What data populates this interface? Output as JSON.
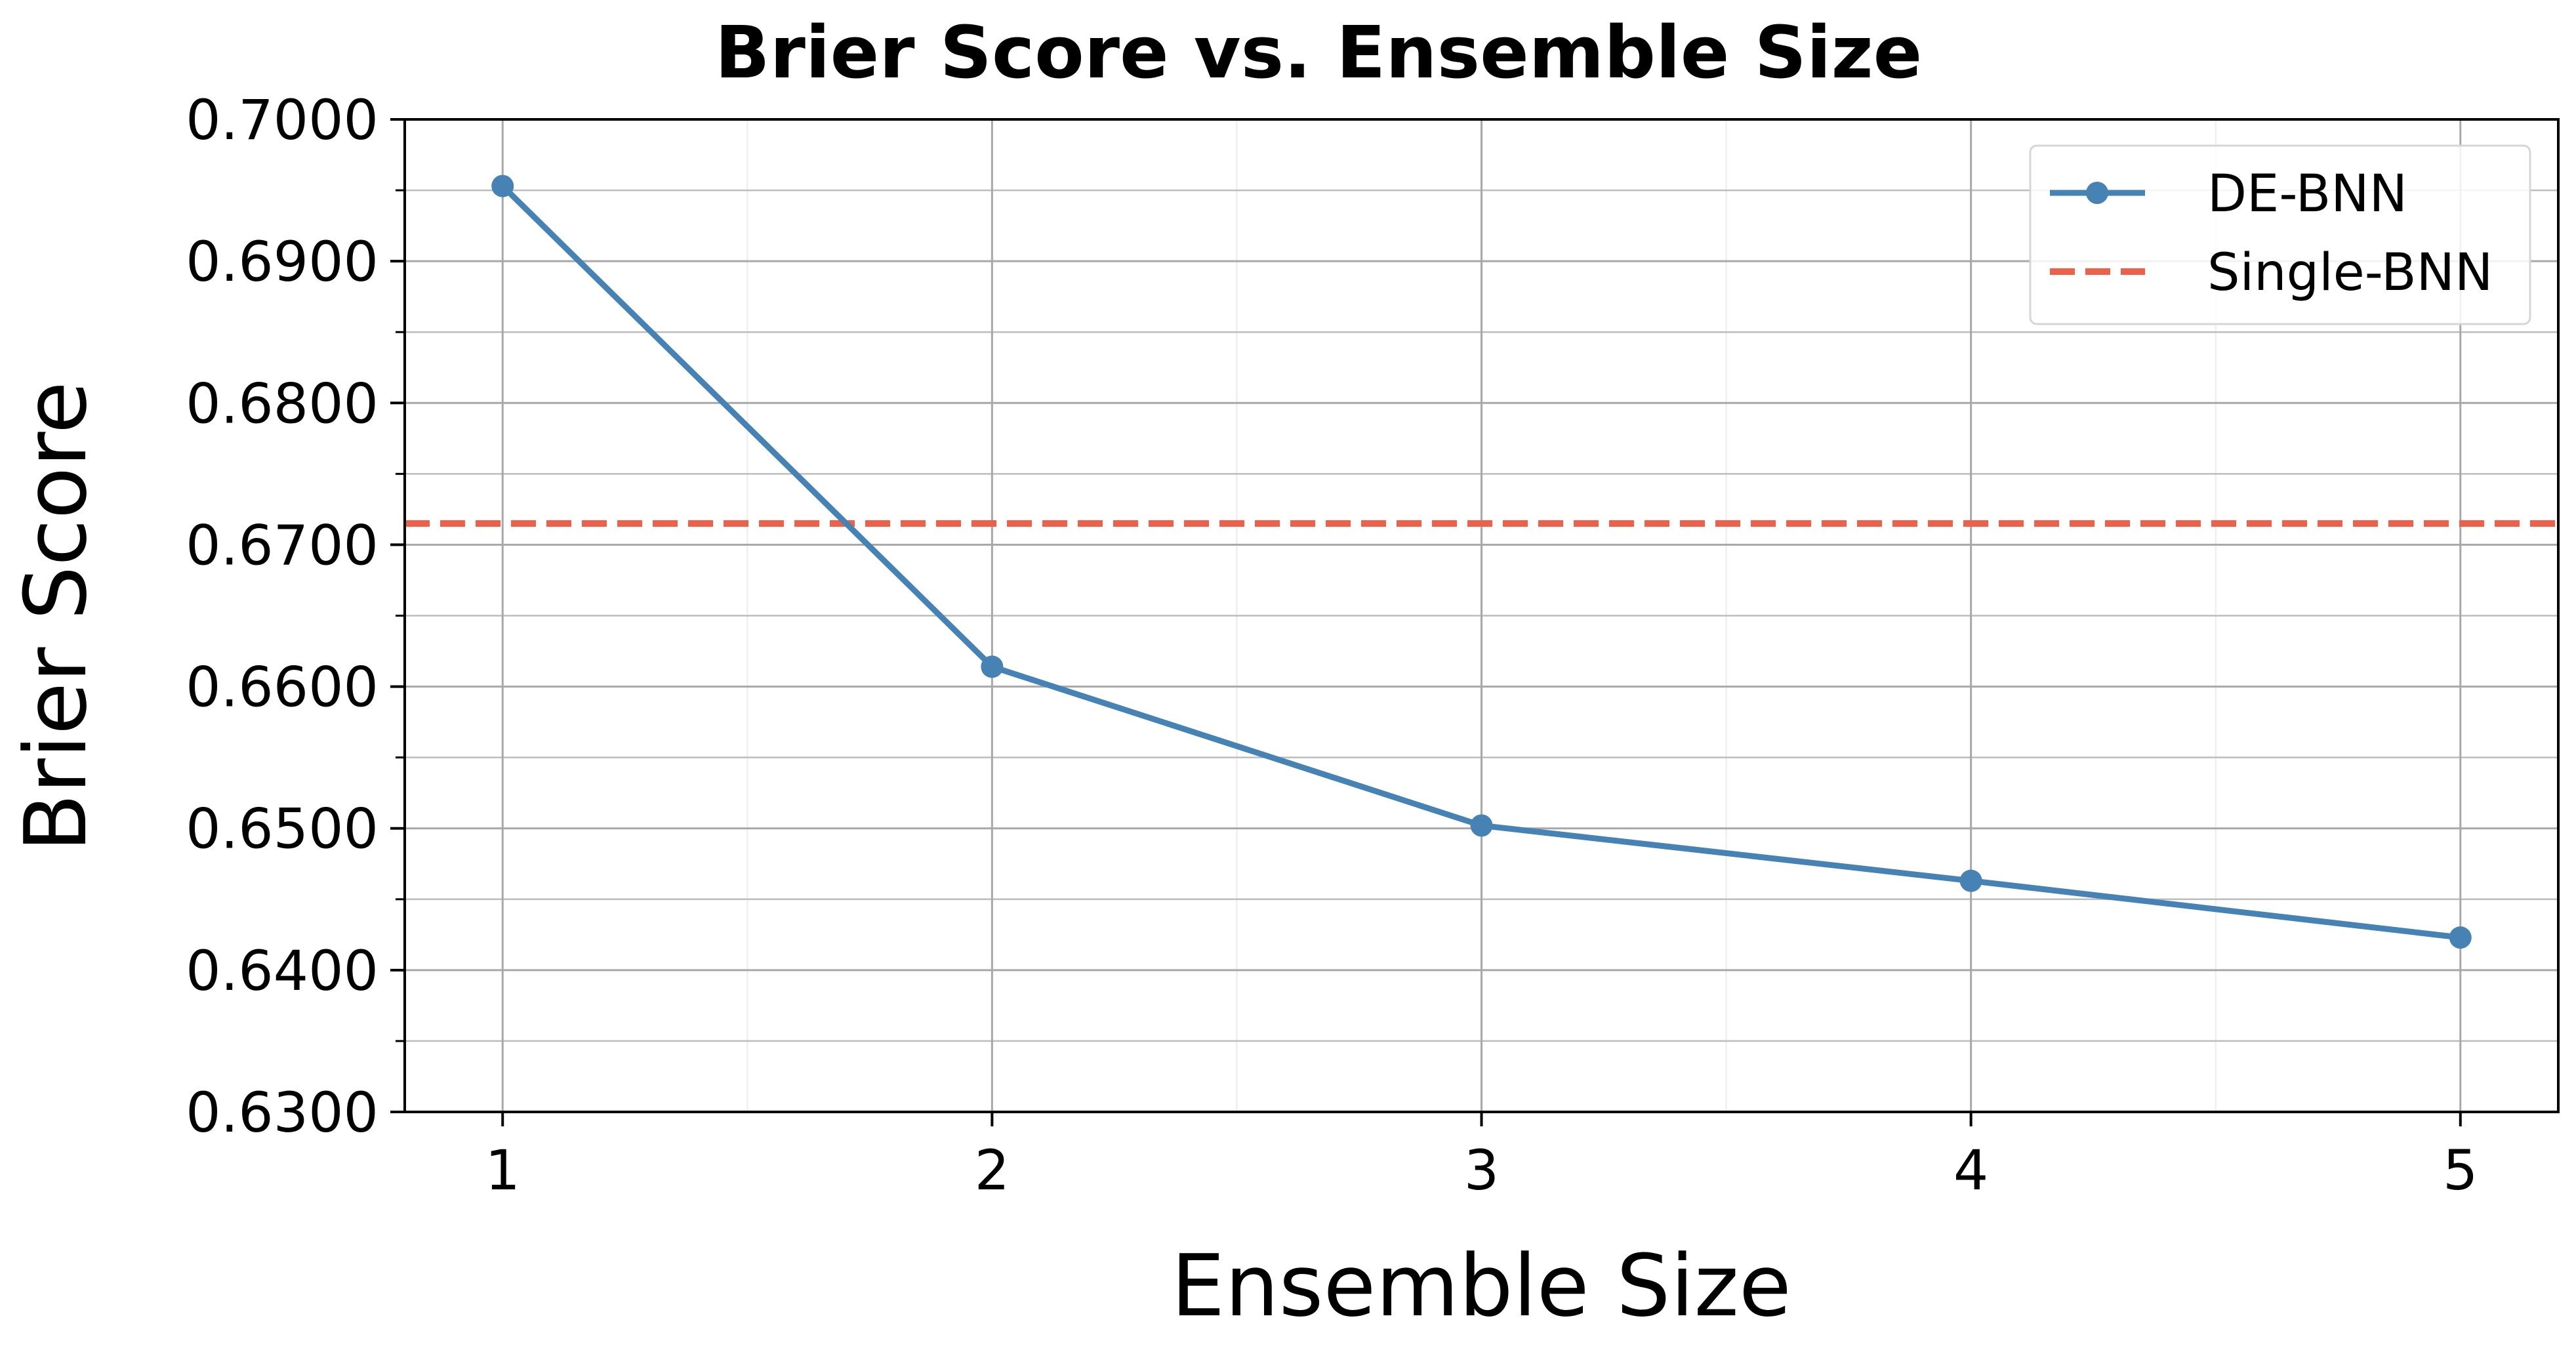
{
  "chart_data": {
    "type": "line",
    "title": "Brier Score vs. Ensemble Size",
    "xlabel": "Ensemble Size",
    "ylabel": "Brier Score",
    "x": [
      1,
      2,
      3,
      4,
      5
    ],
    "xlim": [
      0.8,
      5.2
    ],
    "ylim": [
      0.63,
      0.7
    ],
    "xticks": [
      "1",
      "2",
      "3",
      "4",
      "5"
    ],
    "yticks": [
      "0.6300",
      "0.6400",
      "0.6500",
      "0.6600",
      "0.6700",
      "0.6800",
      "0.6900",
      "0.7000"
    ],
    "grid": true,
    "legend_position": "top-right",
    "series": [
      {
        "name": "DE-BNN",
        "values": [
          0.6953,
          0.6614,
          0.6502,
          0.6463,
          0.6423
        ],
        "color": "#4682b4",
        "style": "solid",
        "marker": "circle"
      }
    ],
    "reference_lines": [
      {
        "name": "Single-BNN",
        "y": 0.6715,
        "color": "#ee6049",
        "style": "dashed"
      }
    ]
  }
}
